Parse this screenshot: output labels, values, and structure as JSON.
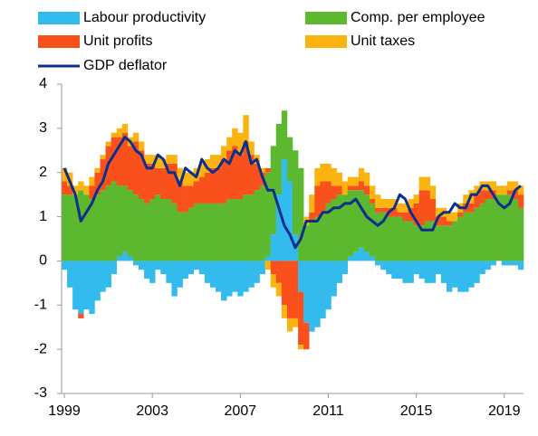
{
  "chart_data": {
    "type": "bar",
    "stacked": true,
    "x": [
      1999,
      1999.25,
      1999.5,
      1999.75,
      2000,
      2000.25,
      2000.5,
      2000.75,
      2001,
      2001.25,
      2001.5,
      2001.75,
      2002,
      2002.25,
      2002.5,
      2002.75,
      2003,
      2003.25,
      2003.5,
      2003.75,
      2004,
      2004.25,
      2004.5,
      2004.75,
      2005,
      2005.25,
      2005.5,
      2005.75,
      2006,
      2006.25,
      2006.5,
      2006.75,
      2007,
      2007.25,
      2007.5,
      2007.75,
      2008,
      2008.25,
      2008.5,
      2008.75,
      2009,
      2009.25,
      2009.5,
      2009.75,
      2010,
      2010.25,
      2010.5,
      2010.75,
      2011,
      2011.25,
      2011.5,
      2011.75,
      2012,
      2012.25,
      2012.5,
      2012.75,
      2013,
      2013.25,
      2013.5,
      2013.75,
      2014,
      2014.25,
      2014.5,
      2014.75,
      2015,
      2015.25,
      2015.5,
      2015.75,
      2016,
      2016.25,
      2016.5,
      2016.75,
      2017,
      2017.25,
      2017.5,
      2017.75,
      2018,
      2018.25,
      2018.5,
      2018.75,
      2019,
      2019.25,
      2019.5,
      2019.75
    ],
    "xlim": [
      1998.875,
      2019.875
    ],
    "xticks": [
      1999,
      2003,
      2007,
      2011,
      2015,
      2019
    ],
    "ylim": [
      -3,
      4
    ],
    "yticks": [
      -3,
      -2,
      -1,
      0,
      1,
      2,
      3,
      4
    ],
    "series": [
      {
        "name": "Labour productivity",
        "color": "#33bbee",
        "type": "bar",
        "values": [
          -0.2,
          -0.6,
          -1.1,
          -1.2,
          -1.1,
          -1.2,
          -0.9,
          -0.7,
          -0.6,
          -0.3,
          0.1,
          0.2,
          0.1,
          -0.1,
          -0.2,
          -0.4,
          -0.5,
          -0.2,
          -0.3,
          -0.5,
          -0.8,
          -0.6,
          -0.4,
          -0.3,
          -0.2,
          -0.3,
          -0.5,
          -0.6,
          -0.7,
          -0.9,
          -0.8,
          -0.7,
          -0.8,
          -0.7,
          -0.6,
          -0.5,
          -0.3,
          0.1,
          0.6,
          1.5,
          2.3,
          1.8,
          0.6,
          -0.7,
          -1.4,
          -1.6,
          -1.5,
          -1.3,
          -1.1,
          -0.8,
          -0.5,
          -0.3,
          0.1,
          0.2,
          0.3,
          0.2,
          0.1,
          -0.1,
          -0.2,
          -0.3,
          -0.4,
          -0.4,
          -0.5,
          -0.5,
          -0.3,
          -0.4,
          -0.5,
          -0.5,
          -0.3,
          -0.5,
          -0.7,
          -0.6,
          -0.7,
          -0.7,
          -0.6,
          -0.5,
          -0.3,
          -0.2,
          -0.1,
          0.0,
          -0.1,
          -0.1,
          -0.1,
          -0.2
        ]
      },
      {
        "name": "Comp. per employee",
        "color": "#5cb82e",
        "type": "bar",
        "values": [
          1.5,
          1.5,
          1.5,
          1.6,
          1.5,
          1.4,
          1.5,
          1.6,
          1.7,
          1.8,
          1.6,
          1.5,
          1.5,
          1.5,
          1.4,
          1.3,
          1.4,
          1.5,
          1.4,
          1.4,
          1.3,
          1.1,
          1.1,
          1.2,
          1.3,
          1.3,
          1.3,
          1.3,
          1.3,
          1.3,
          1.4,
          1.4,
          1.4,
          1.5,
          1.5,
          1.6,
          1.7,
          1.9,
          2.0,
          1.6,
          1.1,
          1.0,
          1.9,
          2.1,
          0.8,
          0.9,
          1.0,
          1.1,
          1.3,
          1.4,
          1.5,
          1.5,
          1.5,
          1.4,
          1.3,
          1.3,
          1.2,
          1.1,
          1.1,
          1.0,
          1.0,
          1.0,
          0.9,
          0.9,
          0.8,
          0.8,
          0.9,
          0.9,
          0.8,
          0.8,
          0.8,
          0.9,
          1.0,
          1.1,
          1.1,
          1.2,
          1.3,
          1.4,
          1.4,
          1.5,
          1.5,
          1.5,
          1.4,
          1.2
        ]
      },
      {
        "name": "Unit profits",
        "color": "#f9501c",
        "type": "bar",
        "values": [
          0.3,
          0.2,
          0.0,
          -0.1,
          0.0,
          0.3,
          0.5,
          0.7,
          0.9,
          1.0,
          1.1,
          1.2,
          1.0,
          1.2,
          1.1,
          0.9,
          0.8,
          0.6,
          0.7,
          0.8,
          0.9,
          0.7,
          0.6,
          0.5,
          0.5,
          0.6,
          0.7,
          0.8,
          0.8,
          1.0,
          1.1,
          1.2,
          1.0,
          1.2,
          0.9,
          0.6,
          0.3,
          0.1,
          -0.3,
          -0.5,
          -1.0,
          -1.3,
          -1.3,
          -1.2,
          -0.6,
          0.2,
          0.7,
          0.7,
          0.5,
          0.3,
          0.2,
          0.0,
          0.1,
          0.1,
          0.2,
          0.2,
          0.1,
          0.1,
          0.1,
          0.2,
          0.2,
          0.1,
          0.2,
          0.3,
          0.5,
          0.8,
          0.7,
          0.5,
          0.2,
          0.2,
          0.1,
          0.0,
          0.1,
          0.2,
          0.2,
          0.3,
          0.3,
          0.2,
          0.2,
          0.0,
          0.0,
          0.1,
          0.2,
          0.3
        ]
      },
      {
        "name": "Unit taxes",
        "color": "#fbb40f",
        "type": "bar",
        "values": [
          0.3,
          0.3,
          0.2,
          0.2,
          0.2,
          0.2,
          0.1,
          0.1,
          0.1,
          0.1,
          0.2,
          0.2,
          0.2,
          0.2,
          0.2,
          0.2,
          0.2,
          0.3,
          0.2,
          0.2,
          0.2,
          0.3,
          0.3,
          0.3,
          0.3,
          0.3,
          0.3,
          0.3,
          0.3,
          0.3,
          0.3,
          0.4,
          0.5,
          0.6,
          0.3,
          0.2,
          0.1,
          -0.2,
          -0.3,
          -0.3,
          -0.3,
          -0.3,
          -0.2,
          -0.1,
          0.2,
          0.4,
          0.4,
          0.4,
          0.4,
          0.4,
          0.3,
          0.3,
          0.2,
          0.2,
          0.3,
          0.3,
          0.3,
          0.3,
          0.2,
          0.2,
          0.2,
          0.2,
          0.2,
          0.2,
          0.2,
          0.3,
          0.3,
          0.3,
          0.2,
          0.2,
          0.2,
          0.2,
          0.2,
          0.2,
          0.3,
          0.2,
          0.2,
          0.2,
          0.2,
          0.2,
          0.2,
          0.2,
          0.2,
          0.2
        ]
      },
      {
        "name": "GDP deflator",
        "color": "#0a2f8c",
        "type": "line",
        "values": [
          2.1,
          1.8,
          1.5,
          0.9,
          1.1,
          1.3,
          1.6,
          1.8,
          2.2,
          2.4,
          2.6,
          2.8,
          2.7,
          2.5,
          2.4,
          2.1,
          2.1,
          2.4,
          2.3,
          2.0,
          2.0,
          1.7,
          2.1,
          2.0,
          1.9,
          2.3,
          2.1,
          2.0,
          2.1,
          2.3,
          2.2,
          2.5,
          2.4,
          2.7,
          2.2,
          2.3,
          1.9,
          1.6,
          1.6,
          1.2,
          0.8,
          0.6,
          0.3,
          0.5,
          0.9,
          0.9,
          0.9,
          1.1,
          1.1,
          1.2,
          1.2,
          1.3,
          1.3,
          1.4,
          1.2,
          1.0,
          0.9,
          0.8,
          0.9,
          1.1,
          1.2,
          1.5,
          1.4,
          1.1,
          0.9,
          0.7,
          0.7,
          0.7,
          1.0,
          1.1,
          1.1,
          1.3,
          1.2,
          1.2,
          1.5,
          1.5,
          1.7,
          1.7,
          1.5,
          1.3,
          1.2,
          1.3,
          1.6,
          1.7
        ]
      }
    ]
  }
}
